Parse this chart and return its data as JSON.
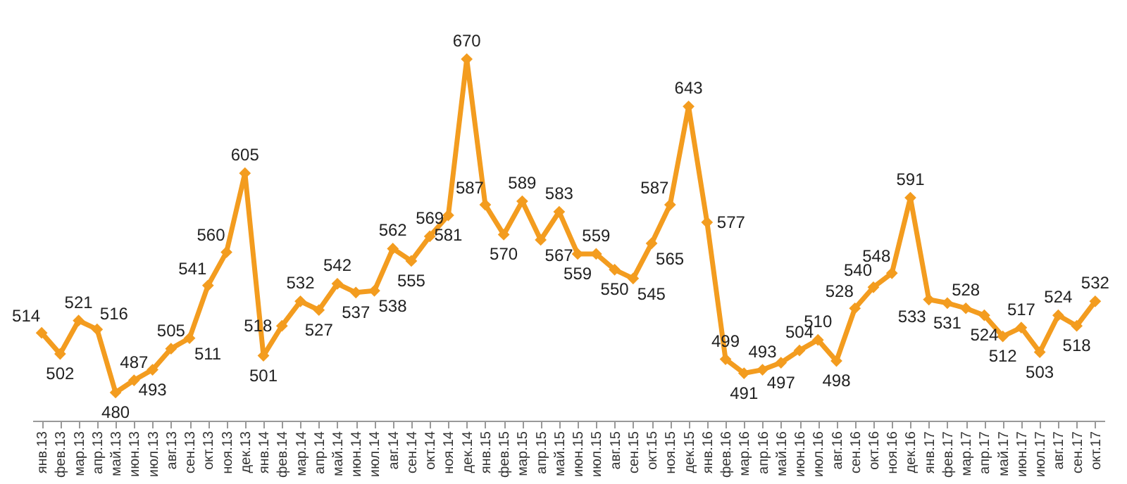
{
  "chart_data": {
    "type": "line",
    "categories": [
      "янв.13",
      "фев.13",
      "мар.13",
      "апр.13",
      "май.13",
      "июн.13",
      "июл.13",
      "авг.13",
      "сен.13",
      "окт.13",
      "ноя.13",
      "дек.13",
      "янв.14",
      "фев.14",
      "мар.14",
      "апр.14",
      "май.14",
      "июн.14",
      "июл.14",
      "авг.14",
      "сен.14",
      "окт.14",
      "ноя.14",
      "дек.14",
      "янв.15",
      "фев.15",
      "мар.15",
      "апр.15",
      "май.15",
      "июн.15",
      "июл.15",
      "авг.15",
      "сен.15",
      "окт.15",
      "ноя.15",
      "дек.15",
      "янв.16",
      "фев.16",
      "мар.16",
      "апр.16",
      "май.16",
      "июн.16",
      "июл.16",
      "авг.16",
      "сен.16",
      "окт.16",
      "ноя.16",
      "дек.16",
      "янв.17",
      "фев.17",
      "мар.17",
      "апр.17",
      "май.17",
      "июн.17",
      "июл.17",
      "авг.17",
      "сен.17",
      "окт.17"
    ],
    "series": [
      {
        "color": "#f39c1f",
        "values": [
          514,
          502,
          521,
          516,
          480,
          487,
          493,
          505,
          511,
          541,
          560,
          605,
          501,
          518,
          532,
          527,
          542,
          537,
          538,
          562,
          555,
          569,
          581,
          670,
          587,
          570,
          589,
          567,
          583,
          559,
          559,
          550,
          545,
          565,
          587,
          643,
          577,
          499,
          491,
          493,
          497,
          504,
          510,
          498,
          528,
          540,
          548,
          591,
          533,
          531,
          528,
          524,
          512,
          517,
          503,
          524,
          518,
          532
        ]
      }
    ],
    "data_labels": true,
    "marker": "diamond",
    "line_style": "solid",
    "grid": false
  }
}
